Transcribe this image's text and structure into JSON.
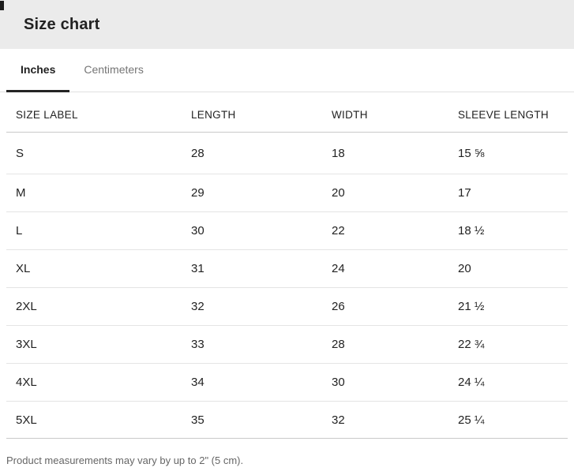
{
  "title": "Size chart",
  "tabs": {
    "inches": "Inches",
    "centimeters": "Centimeters",
    "active_tab": "Inches"
  },
  "table": {
    "columns": [
      "SIZE LABEL",
      "LENGTH",
      "WIDTH",
      "SLEEVE LENGTH"
    ],
    "unit": "inches",
    "rows": [
      [
        "S",
        "28",
        "18",
        "15 ⅝"
      ],
      [
        "M",
        "29",
        "20",
        "17"
      ],
      [
        "L",
        "30",
        "22",
        "18 ½"
      ],
      [
        "XL",
        "31",
        "24",
        "20"
      ],
      [
        "2XL",
        "32",
        "26",
        "21 ½"
      ],
      [
        "3XL",
        "33",
        "28",
        "22 ¾"
      ],
      [
        "4XL",
        "34",
        "30",
        "24 ¼"
      ],
      [
        "5XL",
        "35",
        "32",
        "25 ¼"
      ]
    ]
  },
  "footer": {
    "note": "Product measurements may vary by up to 2\" (5 cm)."
  },
  "colors": {
    "header_band_bg": "#ebebeb",
    "text_primary": "#222222",
    "text_secondary": "#757575",
    "tab_underline": "#242424",
    "row_divider": "#e4e4e4",
    "strong_divider": "#c9c9c9",
    "footer_text": "#666666"
  }
}
